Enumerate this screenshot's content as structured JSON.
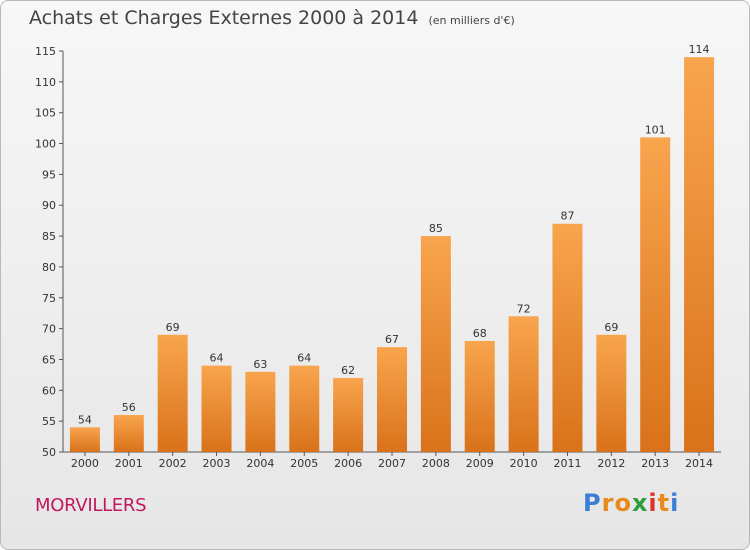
{
  "title": "Achats et Charges Externes 2000 à 2014",
  "unit_note": "(en milliers d'€)",
  "commune": "MORVILLERS",
  "logo": {
    "letters": [
      "P",
      "r",
      "o",
      "x",
      "i",
      "t",
      "i"
    ],
    "colors": [
      "#3a7fd5",
      "#e8891a",
      "#e8891a",
      "#2e9e3e",
      "#d8342c",
      "#e8891a",
      "#3a7fd5"
    ]
  },
  "colors": {
    "bar_light": "#f8a54e",
    "bar_dark": "#d9721a",
    "commune": "#c2185b"
  },
  "chart_data": {
    "type": "bar",
    "categories": [
      "2000",
      "2001",
      "2002",
      "2003",
      "2004",
      "2005",
      "2006",
      "2007",
      "2008",
      "2009",
      "2010",
      "2011",
      "2012",
      "2013",
      "2014"
    ],
    "values": [
      54,
      56,
      69,
      64,
      63,
      64,
      62,
      67,
      85,
      68,
      72,
      87,
      69,
      101,
      114
    ],
    "ylim": [
      50,
      115
    ],
    "yticks": [
      50,
      55,
      60,
      65,
      70,
      75,
      80,
      85,
      90,
      95,
      100,
      105,
      110,
      115
    ],
    "grid": false
  }
}
